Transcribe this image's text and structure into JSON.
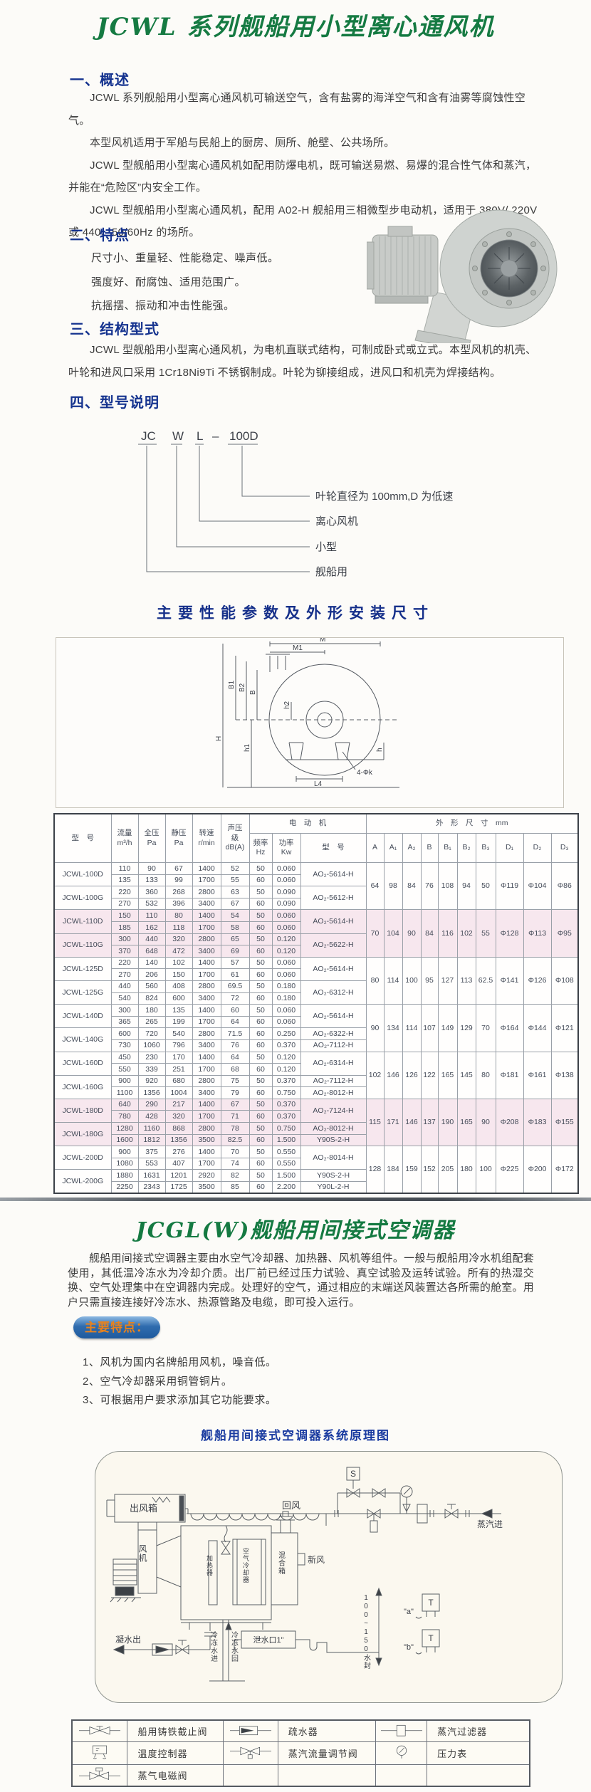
{
  "doc": {
    "title": "JCWL 系列舰船用小型离心通风机",
    "s1": {
      "heading": "一、概述",
      "paras": [
        "JCWL 系列舰船用小型离心通风机可输送空气，含有盐雾的海洋空气和含有油雾等腐蚀性空气。",
        "本型风机适用于军船与民船上的厨房、厕所、舱壁、公共场所。",
        "JCWL 型舰船用小型离心通风机如配用防爆电机，既可输送易燃、易爆的混合性气体和蒸汽，并能在“危险区”内安全工作。",
        "JCWL 型舰船用小型离心通风机，配用 A02-H 舰船用三相微型步电动机，适用于 380V/ 220V 或 440、50/60Hz 的场所。"
      ]
    },
    "s2": {
      "heading": "二、特点",
      "items": [
        "尺寸小、重量轻、性能稳定、噪声低。",
        "强度好、耐腐蚀、适用范围广。",
        "抗摇摆、振动和冲击性能强。"
      ]
    },
    "s3": {
      "heading": "三、结构型式",
      "para": "JCWL 型舰船用小型离心通风机，为电机直联式结构，可制成卧式或立式。本型风机的机壳、叶轮和进风口采用 1Cr18Ni9Ti 不锈钢制成。叶轮为铆接组成，进风口和机壳为焊接结构。"
    },
    "s4": {
      "heading": "四、型号说明",
      "code": {
        "jc": "JC",
        "w": "W",
        "l": "L",
        "dash": "–",
        "size": "100D"
      },
      "notes": [
        "叶轮直径为 100mm,D 为低速",
        "离心风机",
        "小型",
        "舰船用"
      ]
    },
    "perf_title": "主要性能参数及外形安装尺寸"
  },
  "drawing": {
    "labels": {
      "M": "M",
      "M1": "M1",
      "B1": "B1",
      "B2": "B2",
      "B": "B",
      "H": "H",
      "h1": "h1",
      "h2": "h2",
      "h": "h",
      "L4": "L4",
      "holes": "4-Φk"
    }
  },
  "table": {
    "header": {
      "model": "型　号",
      "flow": "流量\nm³/h",
      "tp": "全压\nPa",
      "sp": "静压\nPa",
      "rpm": "转速\nr/min",
      "db": "声压\n级\ndB(A)",
      "motor_group": "电　动　机",
      "hz": "频率\nHz",
      "kw": "功率\nKw",
      "motor_model": "型　号",
      "dims_group": "外　形　尺　寸　mm",
      "dims": [
        "A",
        "A₁",
        "A₂",
        "B",
        "B₁",
        "B₂",
        "B₃",
        "D₁",
        "D₂",
        "D₃"
      ]
    },
    "groups": [
      {
        "model": "JCWL-100D",
        "motor": "AO₂-5614-H",
        "rows": [
          [
            "110",
            "90",
            "67",
            "1400",
            "52",
            "50",
            "0.060"
          ],
          [
            "135",
            "133",
            "99",
            "1700",
            "55",
            "60",
            "0.060"
          ]
        ]
      },
      {
        "model": "JCWL-100G",
        "motor": "AO₂-5612-H",
        "rows": [
          [
            "220",
            "360",
            "268",
            "2800",
            "63",
            "50",
            "0.090"
          ],
          [
            "270",
            "532",
            "396",
            "3400",
            "67",
            "60",
            "0.090"
          ]
        ]
      },
      {
        "model": "JCWL-110D",
        "motor": "AO₂-5614-H",
        "rows": [
          [
            "150",
            "110",
            "80",
            "1400",
            "54",
            "50",
            "0.060"
          ],
          [
            "185",
            "162",
            "118",
            "1700",
            "58",
            "60",
            "0.060"
          ]
        ]
      },
      {
        "model": "JCWL-110G",
        "motor": "AO₂-5622-H",
        "rows": [
          [
            "300",
            "440",
            "320",
            "2800",
            "65",
            "50",
            "0.120"
          ],
          [
            "370",
            "648",
            "472",
            "3400",
            "69",
            "60",
            "0.120"
          ]
        ]
      },
      {
        "model": "JCWL-125D",
        "motor": "AO₂-5614-H",
        "rows": [
          [
            "220",
            "140",
            "102",
            "1400",
            "57",
            "50",
            "0.060"
          ],
          [
            "270",
            "206",
            "150",
            "1700",
            "61",
            "60",
            "0.060"
          ]
        ]
      },
      {
        "model": "JCWL-125G",
        "motor": "AO₂-6312-H",
        "rows": [
          [
            "440",
            "560",
            "408",
            "2800",
            "69.5",
            "50",
            "0.180"
          ],
          [
            "540",
            "824",
            "600",
            "3400",
            "72",
            "60",
            "0.180"
          ]
        ]
      },
      {
        "model": "JCWL-140D",
        "motor": "AO₂-5614-H",
        "rows": [
          [
            "300",
            "180",
            "135",
            "1400",
            "60",
            "50",
            "0.060"
          ],
          [
            "365",
            "265",
            "199",
            "1700",
            "64",
            "60",
            "0.060"
          ]
        ]
      },
      {
        "model": "JCWL-140G",
        "rows": [
          [
            "600",
            "720",
            "540",
            "2800",
            "71.5",
            "60",
            "0.250",
            "AO₂-6322-H"
          ],
          [
            "730",
            "1060",
            "796",
            "3400",
            "76",
            "60",
            "0.370",
            "AO₂-7112-H"
          ]
        ]
      },
      {
        "model": "JCWL-160D",
        "motor": "AO₂-6314-H",
        "rows": [
          [
            "450",
            "230",
            "170",
            "1400",
            "64",
            "50",
            "0.120"
          ],
          [
            "550",
            "339",
            "251",
            "1700",
            "68",
            "60",
            "0.120"
          ]
        ]
      },
      {
        "model": "JCWL-160G",
        "rows": [
          [
            "900",
            "920",
            "680",
            "2800",
            "75",
            "50",
            "0.370",
            "AO₂-7112-H"
          ],
          [
            "1100",
            "1356",
            "1004",
            "3400",
            "79",
            "60",
            "0.750",
            "AO₂-8012-H"
          ]
        ]
      },
      {
        "model": "JCWL-180D",
        "motor": "AO₂-7124-H",
        "rows": [
          [
            "640",
            "290",
            "217",
            "1400",
            "67",
            "50",
            "0.370"
          ],
          [
            "780",
            "428",
            "320",
            "1700",
            "71",
            "60",
            "0.370"
          ]
        ]
      },
      {
        "model": "JCWL-180G",
        "rows": [
          [
            "1280",
            "1160",
            "868",
            "2800",
            "78",
            "50",
            "0.750",
            "AO₂-8012-H"
          ],
          [
            "1600",
            "1812",
            "1356",
            "3500",
            "82.5",
            "60",
            "1.500",
            "Y90S-2-H"
          ]
        ]
      },
      {
        "model": "JCWL-200D",
        "motor": "AO₂-8014-H",
        "rows": [
          [
            "900",
            "375",
            "276",
            "1400",
            "70",
            "50",
            "0.550"
          ],
          [
            "1080",
            "553",
            "407",
            "1700",
            "74",
            "60",
            "0.550"
          ]
        ]
      },
      {
        "model": "JCWL-200G",
        "rows": [
          [
            "1880",
            "1631",
            "1201",
            "2920",
            "82",
            "50",
            "1.500",
            "Y90S-2-H"
          ],
          [
            "2250",
            "2343",
            "1725",
            "3500",
            "85",
            "60",
            "2.200",
            "Y90L-2-H"
          ]
        ]
      }
    ],
    "dim_groups": [
      {
        "size": "100",
        "dims": [
          "64",
          "98",
          "84",
          "76",
          "108",
          "94",
          "50",
          "Φ119",
          "Φ104",
          "Φ86"
        ]
      },
      {
        "size": "110",
        "dims": [
          "70",
          "104",
          "90",
          "84",
          "116",
          "102",
          "55",
          "Φ128",
          "Φ113",
          "Φ95"
        ]
      },
      {
        "size": "125",
        "dims": [
          "80",
          "114",
          "100",
          "95",
          "127",
          "113",
          "62.5",
          "Φ141",
          "Φ126",
          "Φ108"
        ]
      },
      {
        "size": "140",
        "dims": [
          "90",
          "134",
          "114",
          "107",
          "149",
          "129",
          "70",
          "Φ164",
          "Φ144",
          "Φ121"
        ]
      },
      {
        "size": "160",
        "dims": [
          "102",
          "146",
          "126",
          "122",
          "165",
          "145",
          "80",
          "Φ181",
          "Φ161",
          "Φ138"
        ]
      },
      {
        "size": "180",
        "dims": [
          "115",
          "171",
          "146",
          "137",
          "190",
          "165",
          "90",
          "Φ208",
          "Φ183",
          "Φ155"
        ]
      },
      {
        "size": "200",
        "dims": [
          "128",
          "184",
          "159",
          "152",
          "205",
          "180",
          "100",
          "Φ225",
          "Φ200",
          "Φ172"
        ]
      }
    ],
    "pink_groups": [
      "JCWL-110D",
      "JCWL-110G",
      "JCWL-180D",
      "JCWL-180G"
    ]
  },
  "ac": {
    "title": "JCGL(W)舰船用间接式空调器",
    "para": "舰船用间接式空调器主要由水空气冷却器、加热器、风机等组件。一般与舰船用冷水机组配套使用，其低温冷冻水为冷却介质。出厂前已经过压力试验、真空试验及运转试验。所有的热湿交换、空气处理集中在空调器内完成。处理好的空气，通过相应的末端送风装置达各所需的舱室。用户只需直接连接好冷冻水、热源管路及电缆，即可投入运行。",
    "badge": "主要特点：",
    "features": [
      "1、风机为国内名牌船用风机，噪音低。",
      "2、空气冷却器采用铜管铜片。",
      "3、可根据用户要求添加其它功能要求。"
    ],
    "diagram_title": "舰船用间接式空调器系统原理图",
    "labels": {
      "outlet_box": "出风箱",
      "fan": "风机",
      "heater": "加热器",
      "cooler": "空气冷却器",
      "mix_box": "混合箱",
      "fresh_air": "新风",
      "return_air": "回风",
      "steam_in": "蒸汽进",
      "condensate_out": "凝水出",
      "drain": "泄水口1\"",
      "water_seal": "100~150水封",
      "chilled_in": "冷冻水进",
      "chilled_return": "冷冻水回",
      "sensor_a": "\"a\"",
      "sensor_b": "\"b\"",
      "s": "S",
      "t": "T"
    },
    "legend": [
      "船用铸铁截止阀",
      "疏水器",
      "蒸汽过滤器",
      "温度控制器",
      "蒸汽流量调节阀",
      "压力表",
      "蒸气电磁阀"
    ]
  }
}
